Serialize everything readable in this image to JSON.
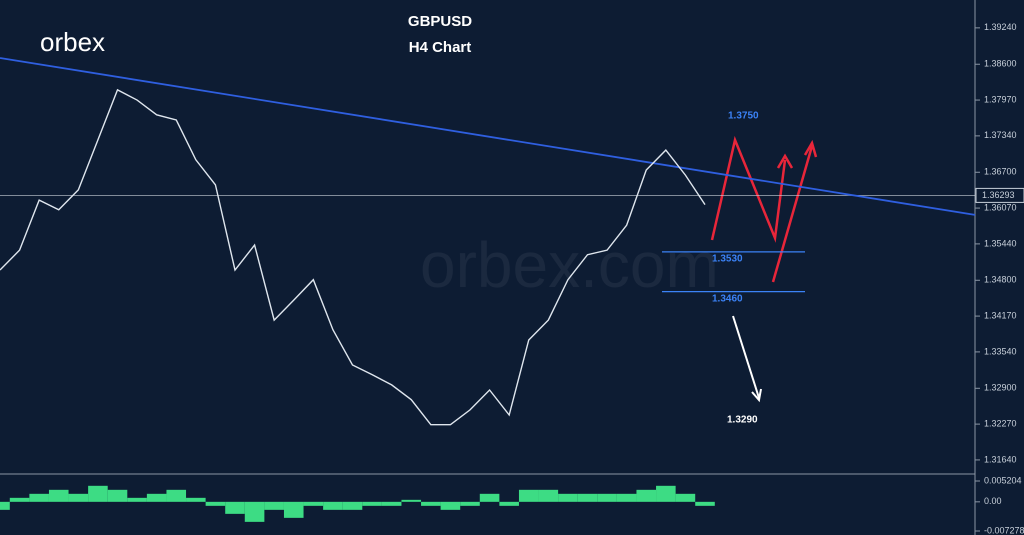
{
  "chart_data": [
    {
      "type": "line",
      "title": "GBPUSD",
      "subtitle": "H4 Chart",
      "logo": "orbex",
      "watermark": "orbex.com",
      "values": [
        1.3498,
        1.3533,
        1.3621,
        1.3604,
        1.3639,
        1.3727,
        1.3815,
        1.3797,
        1.3771,
        1.3762,
        1.3692,
        1.3648,
        1.3498,
        1.3542,
        1.341,
        1.3445,
        1.3481,
        1.3393,
        1.3331,
        1.3314,
        1.3296,
        1.327,
        1.3226,
        1.3226,
        1.3252,
        1.3287,
        1.3243,
        1.3375,
        1.341,
        1.3481,
        1.3525,
        1.3533,
        1.3577,
        1.3674,
        1.3709,
        1.3665,
        1.3613
      ],
      "color": "#dfe6ee",
      "trendline": {
        "values": [
          1.3871,
          1.3595
        ],
        "color": "#2f5fe0"
      },
      "current_price": 1.36293,
      "levels": [
        {
          "value": 1.353,
          "label": "1.3530"
        },
        {
          "value": 1.346,
          "label": "1.3460"
        }
      ],
      "annotations": [
        "1.3750",
        "1.3290"
      ],
      "ylim": [
        1.3141,
        1.3973
      ],
      "yticks": [
        {
          "value": 1.3924,
          "label": "1.39240"
        },
        {
          "value": 1.386,
          "label": "1.38600"
        },
        {
          "value": 1.3797,
          "label": "1.37970"
        },
        {
          "value": 1.3734,
          "label": "1.37340"
        },
        {
          "value": 1.367,
          "label": "1.36700"
        },
        {
          "value": 1.3607,
          "label": "1.36070"
        },
        {
          "value": 1.3544,
          "label": "1.35440"
        },
        {
          "value": 1.348,
          "label": "1.34800"
        },
        {
          "value": 1.3417,
          "label": "1.34170"
        },
        {
          "value": 1.3354,
          "label": "1.33540"
        },
        {
          "value": 1.329,
          "label": "1.32900"
        },
        {
          "value": 1.3227,
          "label": "1.32270"
        },
        {
          "value": 1.3164,
          "label": "1.31640"
        }
      ]
    },
    {
      "type": "bar",
      "values": [
        -0.002,
        0.001,
        0.002,
        0.003,
        0.002,
        0.004,
        0.003,
        0.001,
        0.002,
        0.003,
        0.001,
        -0.001,
        -0.003,
        -0.005,
        -0.002,
        -0.004,
        -0.001,
        -0.002,
        -0.002,
        -0.001,
        -0.001,
        0.0005,
        -0.001,
        -0.002,
        -0.001,
        0.002,
        -0.001,
        0.003,
        0.003,
        0.002,
        0.002,
        0.002,
        0.002,
        0.003,
        0.004,
        0.002,
        -0.001
      ],
      "color": "#3ddc84",
      "ylim": [
        -0.00828,
        0.0067
      ],
      "yticks": [
        0.005204,
        {
          "value": 0,
          "label": "0.00"
        },
        -0.007278
      ]
    }
  ]
}
